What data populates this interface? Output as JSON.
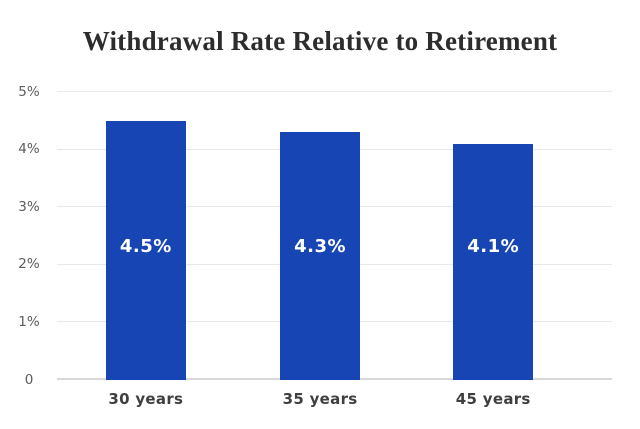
{
  "chart_data": {
    "type": "bar",
    "title": "Withdrawal Rate Relative to Retirement",
    "categories": [
      "30 years",
      "35 years",
      "45 years"
    ],
    "values": [
      4.5,
      4.3,
      4.1
    ],
    "bar_labels": [
      "4.5%",
      "4.3%",
      "4.1%"
    ],
    "xlabel": "",
    "ylabel": "",
    "ylim": [
      0,
      5
    ],
    "grid": true,
    "legend": false,
    "yticks": [
      {
        "value": 5,
        "label": "5%"
      },
      {
        "value": 4,
        "label": "4%"
      },
      {
        "value": 3,
        "label": "3%"
      },
      {
        "value": 2,
        "label": "2%"
      },
      {
        "value": 1,
        "label": "1%"
      },
      {
        "value": 0,
        "label": "0"
      }
    ],
    "colors": {
      "bar": "#1746b4",
      "bar_label": "#ffffff",
      "title": "#2d2d2d",
      "axis_tick_label": "#5c5c5c",
      "category_label": "#3f3f3f",
      "gridline": "#e8e8e8",
      "baseline": "#d8d8d8",
      "background": "#ffffff"
    }
  }
}
